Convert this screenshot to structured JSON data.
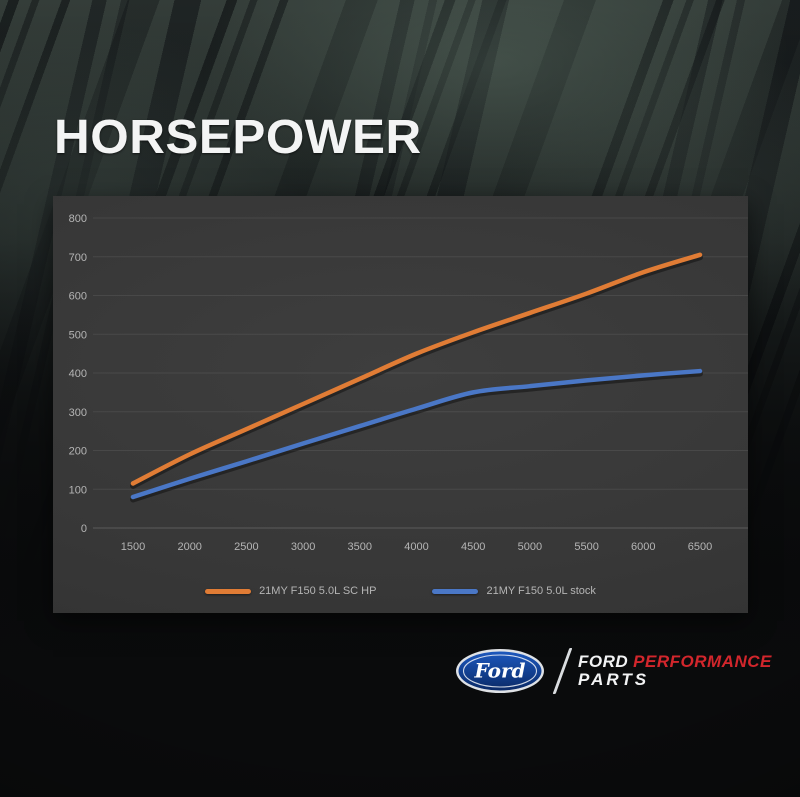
{
  "page": {
    "title": "HORSEPOWER"
  },
  "chart_data": {
    "type": "line",
    "title": "HORSEPOWER",
    "xlabel": "",
    "ylabel": "",
    "x": [
      1500,
      2000,
      2500,
      3000,
      3500,
      4000,
      4500,
      5000,
      5500,
      6000,
      6500
    ],
    "xticks": [
      1500,
      2000,
      2500,
      3000,
      3500,
      4000,
      4500,
      5000,
      5500,
      6000,
      6500
    ],
    "yticks": [
      0,
      100,
      200,
      300,
      400,
      500,
      600,
      700,
      800
    ],
    "xlim": [
      1500,
      6500
    ],
    "ylim": [
      0,
      800
    ],
    "grid": "horizontal",
    "legend_position": "bottom-center",
    "series": [
      {
        "name": "21MY F150 5.0L SC HP",
        "color": "#E07C35",
        "values": [
          115,
          190,
          255,
          320,
          385,
          450,
          505,
          555,
          605,
          660,
          705
        ]
      },
      {
        "name": "21MY F150 5.0L stock",
        "color": "#4A77C6",
        "values": [
          80,
          127,
          172,
          218,
          263,
          308,
          350,
          366,
          381,
          394,
          405
        ]
      }
    ]
  },
  "footer": {
    "ford_oval_text": "Ford",
    "separator": "/",
    "wordmark": {
      "line1_part1": "FORD",
      "line1_part2": "PERFORMANCE",
      "line2": "PARTS"
    }
  },
  "colors": {
    "sc_line": "#E07C35",
    "stock_line": "#4A77C6",
    "performance_red": "#D2262C",
    "ford_blue": "#123F8F",
    "panel_bg": "#373737",
    "page_bg": "#0A0B0C",
    "tick_text": "#B5B5B5"
  }
}
